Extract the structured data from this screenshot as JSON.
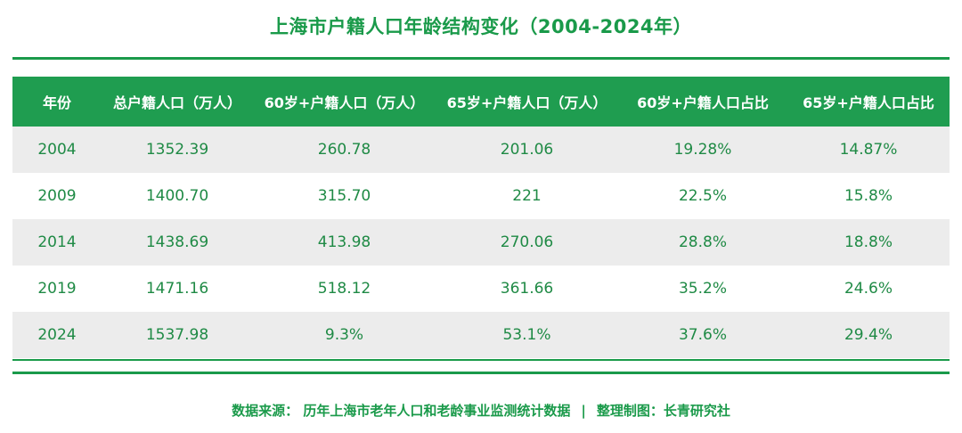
{
  "title": "上海市户籍人口年龄结构变化（2004-2024年）",
  "table": {
    "headers": [
      "年份",
      "总户籍人口（万人）",
      "60岁+户籍人口（万人）",
      "65岁+户籍人口（万人）",
      "60岁+户籍人口占比",
      "65岁+户籍人口占比"
    ],
    "rows": [
      [
        "2004",
        "1352.39",
        "260.78",
        "201.06",
        "19.28%",
        "14.87%"
      ],
      [
        "2009",
        "1400.70",
        "315.70",
        "221",
        "22.5%",
        "15.8%"
      ],
      [
        "2014",
        "1438.69",
        "413.98",
        "270.06",
        "28.8%",
        "18.8%"
      ],
      [
        "2019",
        "1471.16",
        "518.12",
        "361.66",
        "35.2%",
        "24.6%"
      ],
      [
        "2024",
        "1537.98",
        "9.3%",
        "53.1%",
        "37.6%",
        "29.4%"
      ]
    ]
  },
  "footer": {
    "source": "数据来源： 历年上海市老年人口和老龄事业监测统计数据",
    "separator": "|",
    "credit": "整理制图：长青研究社"
  },
  "colors": {
    "accent": "#1a9a4a",
    "header_bg": "#1f9d50",
    "stripe": "#ececec"
  }
}
